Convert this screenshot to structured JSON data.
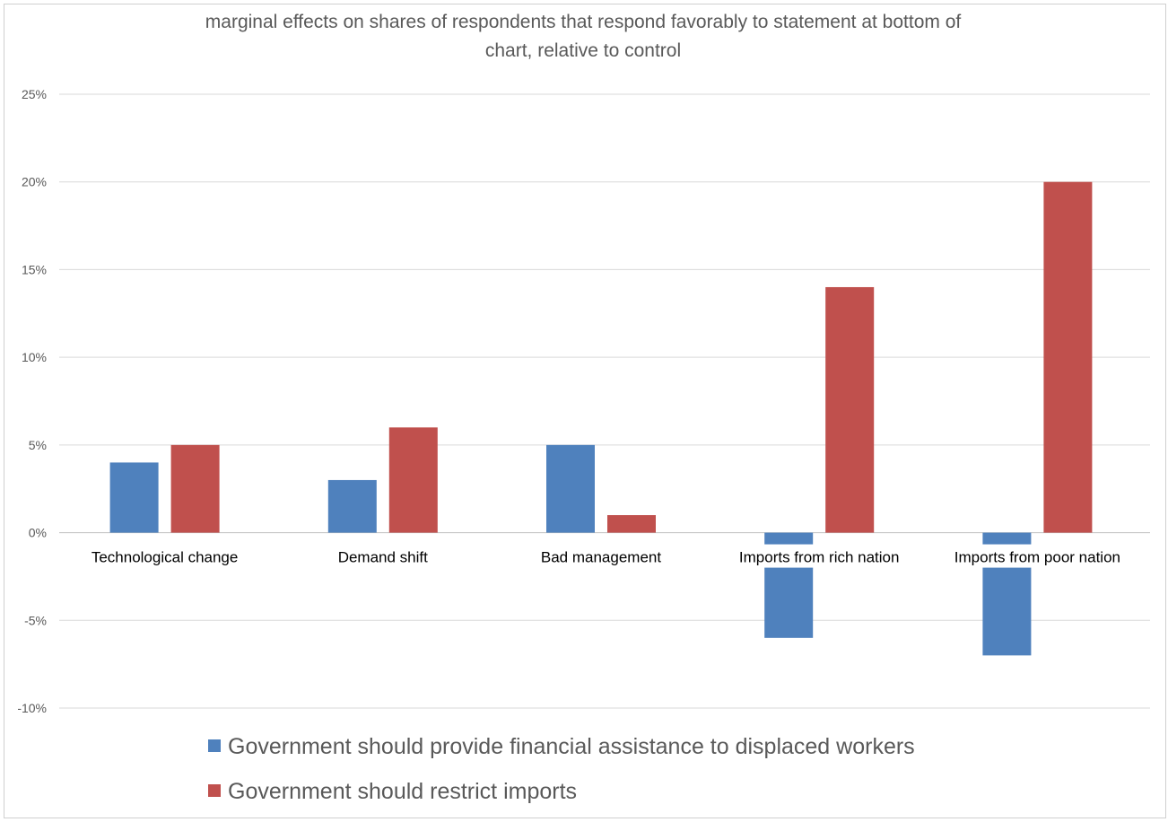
{
  "chart_data": {
    "type": "bar",
    "title_lines": [
      "marginal effects on shares of respondents that respond favorably to statement at bottom of",
      "chart, relative to control"
    ],
    "categories": [
      "Technological change",
      "Demand shift",
      "Bad management",
      "Imports from rich nation",
      "Imports from poor nation"
    ],
    "series": [
      {
        "name": "Government should provide financial assistance to displaced workers",
        "color": "#4f81bd",
        "values": [
          4,
          3,
          5,
          -6,
          -7
        ]
      },
      {
        "name": "Government should restrict imports",
        "color": "#c0504d",
        "values": [
          5,
          6,
          1,
          14,
          20
        ]
      }
    ],
    "ylim": [
      -10,
      25
    ],
    "yticks": [
      25,
      20,
      15,
      10,
      5,
      0,
      -5,
      -10
    ],
    "ytick_labels": [
      "25%",
      "20%",
      "15%",
      "10%",
      "5%",
      "0%",
      "-5%",
      "-10%"
    ],
    "grid": true,
    "legend_position": "bottom"
  }
}
